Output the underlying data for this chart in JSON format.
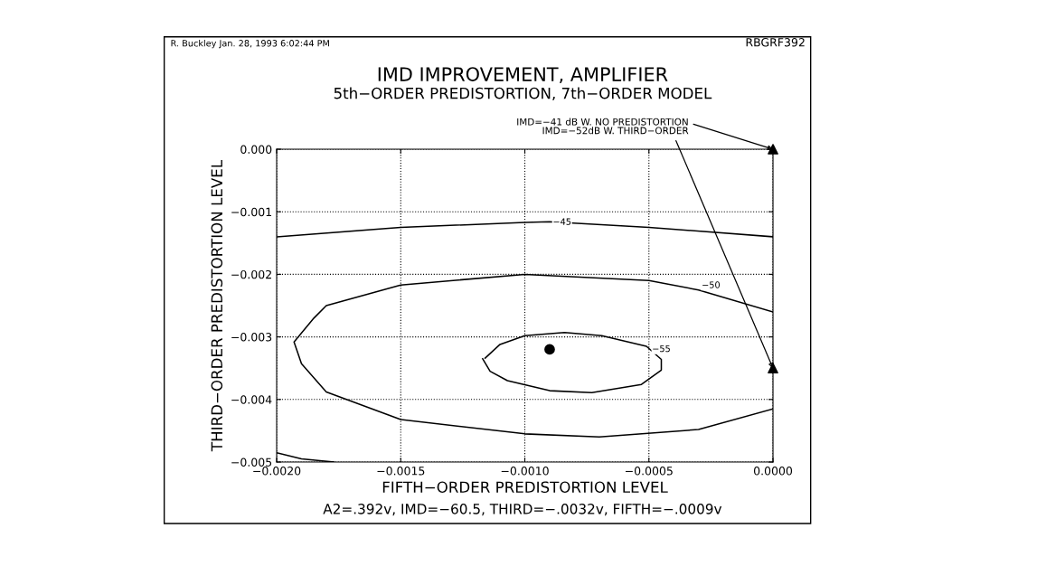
{
  "chart_data": {
    "type": "line",
    "title": "IMD IMPROVEMENT, AMPLIFIER",
    "subtitle": "5th−ORDER PREDISTORTION, 7th−ORDER MODEL",
    "xlabel": "FIFTH−ORDER PREDISTORTION LEVEL",
    "ylabel": "THIRD−ORDER PREDISTORTION LEVEL",
    "xlim": [
      -0.002,
      0.0
    ],
    "ylim": [
      -0.005,
      0.0
    ],
    "xticks": [
      {
        "value": -0.002,
        "label": "−0.0020"
      },
      {
        "value": -0.0015,
        "label": "−0.0015"
      },
      {
        "value": -0.001,
        "label": "−0.0010"
      },
      {
        "value": -0.0005,
        "label": "−0.0005"
      },
      {
        "value": 0.0,
        "label": "0.0000"
      }
    ],
    "yticks": [
      {
        "value": -0.005,
        "label": "−0.005"
      },
      {
        "value": -0.004,
        "label": "−0.004"
      },
      {
        "value": -0.003,
        "label": "−0.003"
      },
      {
        "value": -0.002,
        "label": "−0.002"
      },
      {
        "value": -0.001,
        "label": "−0.001"
      },
      {
        "value": 0.0,
        "label": "0.000"
      }
    ],
    "grid": true,
    "series": [
      {
        "color": "#000000",
        "marker": "none",
        "x": [
          -0.002,
          -0.0015,
          -0.001,
          -0.0009,
          -0.0005,
          0.0
        ],
        "values": [
          -0.0014,
          -0.00125,
          -0.00117,
          -0.00116,
          -0.00125,
          -0.0014
        ]
      },
      {
        "color": "#000000",
        "marker": "none",
        "x": [
          0.0,
          -0.0003,
          -0.0005,
          -0.001,
          -0.0015,
          -0.0018,
          -0.00185,
          -0.00193,
          -0.0019,
          -0.0018,
          -0.0015,
          -0.001,
          -0.0007,
          -0.0003,
          0.0
        ],
        "values": [
          -0.0026,
          -0.00225,
          -0.0021,
          -0.002,
          -0.00217,
          -0.0025,
          -0.0027,
          -0.00308,
          -0.00343,
          -0.00388,
          -0.00432,
          -0.00455,
          -0.0046,
          -0.00448,
          -0.00415
        ]
      },
      {
        "color": "#000000",
        "marker": "none",
        "x": [
          -0.00116,
          -0.0011,
          -0.001,
          -0.00084,
          -0.00069,
          -0.00051,
          -0.00045,
          -0.00045,
          -0.00053,
          -0.00073,
          -0.0009,
          -0.00107,
          -0.00114,
          -0.00117
        ],
        "values": [
          -0.00334,
          -0.00312,
          -0.00298,
          -0.00293,
          -0.00298,
          -0.00315,
          -0.00336,
          -0.00353,
          -0.00376,
          -0.00389,
          -0.00386,
          -0.0037,
          -0.00355,
          -0.00335
        ]
      },
      {
        "color": "#000000",
        "marker": "none",
        "x": [
          -0.002,
          -0.0019,
          -0.00177
        ],
        "values": [
          -0.00485,
          -0.00495,
          -0.005
        ]
      },
      {
        "type": "scatter",
        "color": "#000000",
        "marker": "circle",
        "x": [
          -0.0009
        ],
        "values": [
          -0.0032
        ]
      },
      {
        "type": "scatter",
        "color": "#000000",
        "marker": "triangle",
        "x": [
          0.0,
          0.0
        ],
        "values": [
          0.0,
          -0.0035
        ]
      }
    ],
    "annotations": [
      "R. Buckley Jan. 28, 1993 6:02:44 PM",
      "RBGRF392",
      "A2=.392v, IMD=−60.5, THIRD=−.0032v, FIFTH=−.0009v",
      {
        "text": "−45",
        "x": -0.00085,
        "y": -0.00117
      },
      {
        "text": "−50",
        "x": -0.00025,
        "y": -0.00218
      },
      {
        "text": "−55",
        "x": -0.00045,
        "y": -0.0032
      },
      {
        "text": "IMD=−41 dB W. NO PREDISTORTION",
        "x": 0.0,
        "y": 0.0
      },
      {
        "text": "IMD=−52dB W. THIRD−ORDER",
        "x": 0.0,
        "y": -0.0035
      }
    ]
  }
}
